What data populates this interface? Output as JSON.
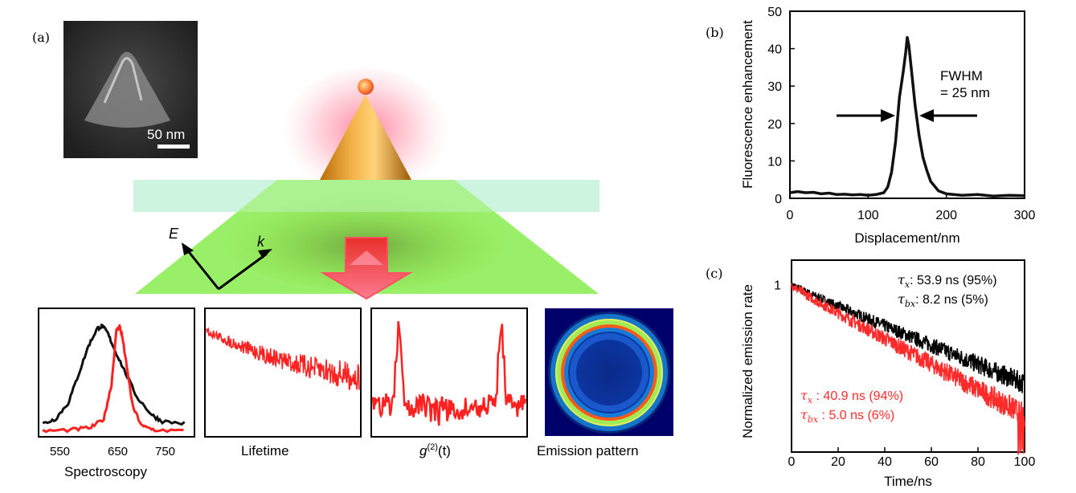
{
  "panel_labels": {
    "a": "(a)",
    "b": "(b)",
    "c": "(c)"
  },
  "panel_a": {
    "sem_scale_label": "50 nm",
    "field_E": "E",
    "field_k": "k",
    "insets": {
      "spectroscopy": {
        "caption": "Spectroscopy",
        "ticks": [
          "550",
          "650",
          "750"
        ],
        "xlim": [
          500,
          800
        ],
        "black_curve": {
          "x": [
            505,
            530,
            555,
            575,
            595,
            612,
            622,
            632,
            645,
            665,
            690,
            720,
            740,
            790
          ],
          "y": [
            0.08,
            0.12,
            0.25,
            0.48,
            0.72,
            0.86,
            0.88,
            0.83,
            0.7,
            0.52,
            0.3,
            0.15,
            0.1,
            0.08
          ]
        },
        "red_curve": {
          "x": [
            505,
            560,
            600,
            625,
            640,
            650,
            656,
            662,
            670,
            682,
            700,
            725,
            790
          ],
          "y": [
            0.02,
            0.03,
            0.05,
            0.12,
            0.4,
            0.85,
            0.88,
            0.78,
            0.55,
            0.22,
            0.06,
            0.03,
            0.02
          ]
        }
      },
      "lifetime": {
        "caption": "Lifetime"
      },
      "g2": {
        "caption_main": "g",
        "caption_sup": "(2)",
        "caption_arg": "(t)"
      },
      "emission": {
        "caption": "Emission pattern"
      }
    }
  },
  "chart_data": [
    {
      "id": "b",
      "type": "line",
      "xlabel": "Displacement/nm",
      "ylabel": "Fluorescence enhancement",
      "xlim": [
        0,
        300
      ],
      "ylim": [
        0,
        50
      ],
      "xticks": [
        0,
        100,
        200,
        300
      ],
      "yticks": [
        0,
        10,
        20,
        30,
        40,
        50
      ],
      "annotation": {
        "line1": "FWHM",
        "line2": "= 25 nm"
      },
      "series": [
        {
          "name": "enhancement",
          "color": "#111111",
          "x": [
            0,
            10,
            20,
            30,
            40,
            50,
            60,
            70,
            80,
            90,
            100,
            110,
            120,
            125,
            130,
            135,
            140,
            145,
            148,
            150,
            152,
            155,
            158,
            160,
            165,
            170,
            175,
            180,
            190,
            200,
            220,
            240,
            260,
            280,
            300
          ],
          "y": [
            1.5,
            1.8,
            1.5,
            1.6,
            1.2,
            1.4,
            1.0,
            1.1,
            0.9,
            1.0,
            0.8,
            1.0,
            1.5,
            3.0,
            7.0,
            15.0,
            27.0,
            34.0,
            39.0,
            43.0,
            41.0,
            35.0,
            29.0,
            25.0,
            17.0,
            11.0,
            7.5,
            4.5,
            2.0,
            1.2,
            0.8,
            1.0,
            0.6,
            0.8,
            0.7
          ]
        }
      ]
    },
    {
      "id": "c",
      "type": "line",
      "xlabel": "Time/ns",
      "ylabel": "Normalized emission rate",
      "xlim": [
        0,
        100
      ],
      "ylim": [
        0.04,
        1.6
      ],
      "yscale": "log",
      "xticks": [
        0,
        20,
        40,
        60,
        80,
        100
      ],
      "yticks": [
        1
      ],
      "ytick_labels": [
        "1"
      ],
      "legend_black": {
        "l1_sym": "τ",
        "l1_sub": "x",
        "l1_text": ":  53.9 ns (95%)",
        "l2_sym": "τ",
        "l2_sub": "bx",
        "l2_text": ": 8.2 ns (5%)"
      },
      "legend_red": {
        "l1_sym": "τ",
        "l1_sub": "x",
        "l1_text": " : 40.9 ns (94%)",
        "l2_sym": "τ",
        "l2_sub": "bx",
        "l2_text": " : 5.0 ns (6%)"
      },
      "series": [
        {
          "name": "black",
          "color": "#000000",
          "A1": 0.95,
          "tau1": 53.9,
          "A2": 0.05,
          "tau2": 8.2
        },
        {
          "name": "red",
          "color": "#ff2a2a",
          "A1": 0.94,
          "tau1": 40.9,
          "A2": 0.06,
          "tau2": 5.0
        }
      ]
    }
  ]
}
